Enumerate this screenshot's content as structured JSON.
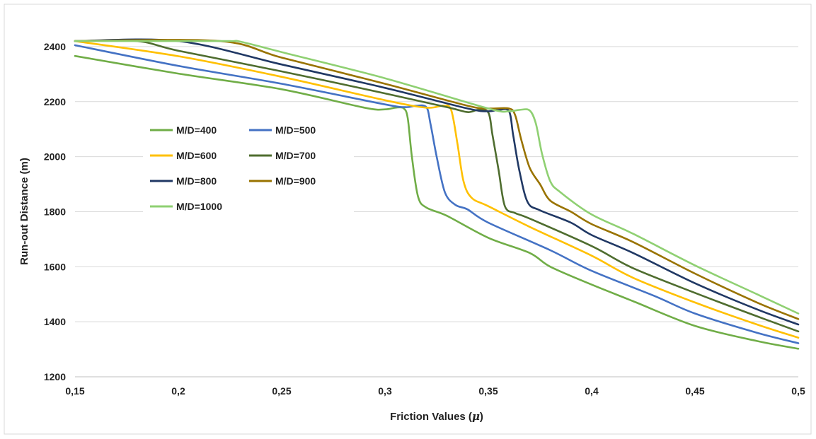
{
  "chart_data": {
    "type": "line",
    "xlabel": "Friction Values (",
    "xlabel_symbol": "μ",
    "xlabel_close": ")",
    "ylabel": "Run-out Distance (m)",
    "xlim": [
      0.15,
      0.5
    ],
    "ylim": [
      1200,
      2500
    ],
    "x_ticks": [
      "0,15",
      "0,2",
      "0,25",
      "0,3",
      "0,35",
      "0,4",
      "0,45",
      "0,5"
    ],
    "x_tick_values": [
      0.15,
      0.2,
      0.25,
      0.3,
      0.35,
      0.4,
      0.45,
      0.5
    ],
    "y_ticks": [
      "1200",
      "1400",
      "1600",
      "1800",
      "2000",
      "2200",
      "2400"
    ],
    "y_tick_values": [
      1200,
      1400,
      1600,
      1800,
      2000,
      2200,
      2400
    ],
    "grid": "horizontal",
    "legend_position": "center-left",
    "series": [
      {
        "name": "M/D=400",
        "color": "#70AD47",
        "points": [
          [
            0.15,
            2366
          ],
          [
            0.2,
            2302
          ],
          [
            0.25,
            2245
          ],
          [
            0.29,
            2178
          ],
          [
            0.3,
            2172
          ],
          [
            0.305,
            2178
          ],
          [
            0.309,
            2176
          ],
          [
            0.311,
            2140
          ],
          [
            0.313,
            2000
          ],
          [
            0.316,
            1855
          ],
          [
            0.32,
            1815
          ],
          [
            0.33,
            1785
          ],
          [
            0.35,
            1705
          ],
          [
            0.37,
            1650
          ],
          [
            0.38,
            1600
          ],
          [
            0.4,
            1535
          ],
          [
            0.42,
            1475
          ],
          [
            0.45,
            1385
          ],
          [
            0.48,
            1330
          ],
          [
            0.5,
            1302
          ]
        ]
      },
      {
        "name": "M/D=500",
        "color": "#4472C4",
        "points": [
          [
            0.15,
            2405
          ],
          [
            0.2,
            2330
          ],
          [
            0.25,
            2265
          ],
          [
            0.3,
            2190
          ],
          [
            0.31,
            2180
          ],
          [
            0.315,
            2185
          ],
          [
            0.32,
            2180
          ],
          [
            0.322,
            2120
          ],
          [
            0.325,
            2000
          ],
          [
            0.329,
            1870
          ],
          [
            0.334,
            1825
          ],
          [
            0.34,
            1808
          ],
          [
            0.35,
            1760
          ],
          [
            0.38,
            1660
          ],
          [
            0.4,
            1585
          ],
          [
            0.43,
            1495
          ],
          [
            0.45,
            1430
          ],
          [
            0.48,
            1360
          ],
          [
            0.5,
            1322
          ]
        ]
      },
      {
        "name": "M/D=600",
        "color": "#FFC000",
        "points": [
          [
            0.15,
            2420
          ],
          [
            0.2,
            2365
          ],
          [
            0.25,
            2290
          ],
          [
            0.3,
            2205
          ],
          [
            0.32,
            2178
          ],
          [
            0.328,
            2185
          ],
          [
            0.332,
            2170
          ],
          [
            0.335,
            2050
          ],
          [
            0.338,
            1910
          ],
          [
            0.342,
            1850
          ],
          [
            0.35,
            1820
          ],
          [
            0.37,
            1745
          ],
          [
            0.4,
            1640
          ],
          [
            0.42,
            1560
          ],
          [
            0.45,
            1470
          ],
          [
            0.48,
            1390
          ],
          [
            0.5,
            1342
          ]
        ]
      },
      {
        "name": "M/D=700",
        "color": "#4F6D2F",
        "points": [
          [
            0.15,
            2420
          ],
          [
            0.18,
            2420
          ],
          [
            0.2,
            2385
          ],
          [
            0.25,
            2310
          ],
          [
            0.3,
            2230
          ],
          [
            0.33,
            2180
          ],
          [
            0.34,
            2162
          ],
          [
            0.345,
            2170
          ],
          [
            0.35,
            2160
          ],
          [
            0.352,
            2080
          ],
          [
            0.355,
            1950
          ],
          [
            0.358,
            1820
          ],
          [
            0.363,
            1795
          ],
          [
            0.37,
            1775
          ],
          [
            0.4,
            1675
          ],
          [
            0.42,
            1595
          ],
          [
            0.45,
            1505
          ],
          [
            0.48,
            1420
          ],
          [
            0.5,
            1365
          ]
        ]
      },
      {
        "name": "M/D=800",
        "color": "#203864",
        "points": [
          [
            0.15,
            2420
          ],
          [
            0.2,
            2420
          ],
          [
            0.25,
            2335
          ],
          [
            0.3,
            2250
          ],
          [
            0.34,
            2175
          ],
          [
            0.35,
            2165
          ],
          [
            0.355,
            2170
          ],
          [
            0.36,
            2165
          ],
          [
            0.362,
            2080
          ],
          [
            0.365,
            1950
          ],
          [
            0.369,
            1835
          ],
          [
            0.375,
            1805
          ],
          [
            0.39,
            1760
          ],
          [
            0.4,
            1715
          ],
          [
            0.42,
            1650
          ],
          [
            0.45,
            1540
          ],
          [
            0.48,
            1445
          ],
          [
            0.5,
            1390
          ]
        ]
      },
      {
        "name": "M/D=900",
        "color": "#997300",
        "points": [
          [
            0.15,
            2420
          ],
          [
            0.22,
            2420
          ],
          [
            0.25,
            2360
          ],
          [
            0.3,
            2265
          ],
          [
            0.34,
            2185
          ],
          [
            0.35,
            2175
          ],
          [
            0.36,
            2175
          ],
          [
            0.363,
            2150
          ],
          [
            0.366,
            2060
          ],
          [
            0.37,
            1960
          ],
          [
            0.375,
            1900
          ],
          [
            0.38,
            1840
          ],
          [
            0.39,
            1800
          ],
          [
            0.4,
            1755
          ],
          [
            0.42,
            1690
          ],
          [
            0.45,
            1575
          ],
          [
            0.48,
            1470
          ],
          [
            0.5,
            1410
          ]
        ]
      },
      {
        "name": "M/D=1000",
        "color": "#8FD072",
        "points": [
          [
            0.15,
            2420
          ],
          [
            0.225,
            2420
          ],
          [
            0.23,
            2418
          ],
          [
            0.25,
            2380
          ],
          [
            0.3,
            2285
          ],
          [
            0.35,
            2175
          ],
          [
            0.36,
            2165
          ],
          [
            0.365,
            2170
          ],
          [
            0.37,
            2168
          ],
          [
            0.373,
            2120
          ],
          [
            0.376,
            2010
          ],
          [
            0.38,
            1910
          ],
          [
            0.385,
            1870
          ],
          [
            0.4,
            1790
          ],
          [
            0.42,
            1720
          ],
          [
            0.45,
            1605
          ],
          [
            0.48,
            1500
          ],
          [
            0.5,
            1430
          ]
        ]
      }
    ]
  }
}
